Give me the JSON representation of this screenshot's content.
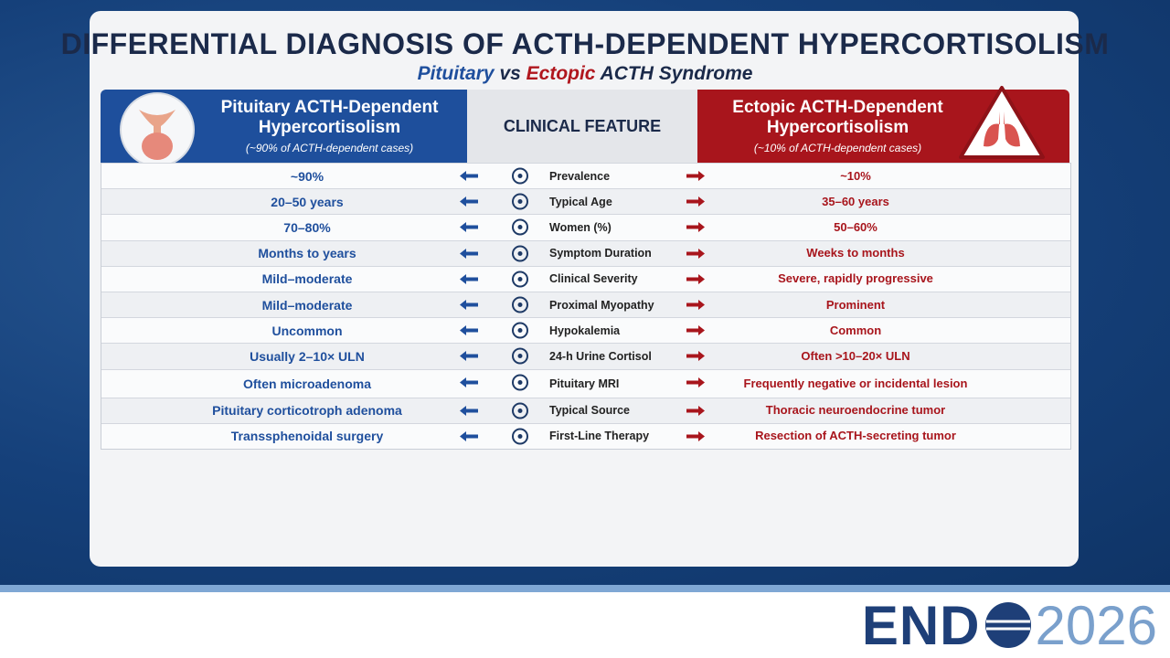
{
  "header": {
    "title": "DIFFERENTIAL DIAGNOSIS OF ACTH-DEPENDENT HYPERCORTISOLISM",
    "subtitle": {
      "pituitary": "Pituitary",
      "vs": "vs",
      "ectopic": "Ectopic",
      "rest": "ACTH Syndrome"
    }
  },
  "table": {
    "left_header": {
      "title": "Pituitary ACTH-Dependent Hypercortisolism",
      "note": "(~90% of ACTH-dependent cases)"
    },
    "center_header": "CLINICAL FEATURE",
    "right_header": {
      "title": "Ectopic ACTH-Dependent Hypercortisolism",
      "note": "(~10% of ACTH-dependent cases)"
    },
    "rows": [
      [
        "~90%",
        "Prevalence",
        "~10%"
      ],
      [
        "20–50 years",
        "Typical Age",
        "35–60 years"
      ],
      [
        "70–80%",
        "Women (%)",
        "50–60%"
      ],
      [
        "Months to years",
        "Symptom Duration",
        "Weeks to months"
      ],
      [
        "Mild–moderate",
        "Clinical Severity",
        "Severe, rapidly progressive"
      ],
      [
        "Mild–moderate",
        "Proximal Myopathy",
        "Prominent"
      ],
      [
        "Uncommon",
        "Hypokalemia",
        "Common"
      ],
      [
        "Usually 2–10× ULN",
        "24-h Urine Cortisol",
        "Often >10–20× ULN"
      ],
      [
        "Often microadenoma",
        "Pituitary MRI",
        "Frequently negative or incidental lesion"
      ],
      [
        "Pituitary corticotroph adenoma",
        "Typical Source",
        "Thoracic neuroendocrine tumor"
      ],
      [
        "Transsphenoidal surgery",
        "First-Line Therapy",
        "Resection of ACTH-secreting tumor"
      ]
    ]
  },
  "logo": {
    "brand": "END",
    "year": "2026"
  }
}
